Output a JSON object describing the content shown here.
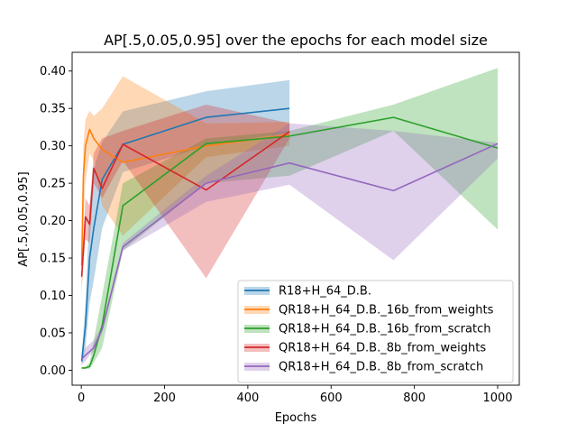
{
  "chart_data": {
    "type": "line",
    "title": "AP[.5,0.05,0.95] over the epochs for each model size",
    "xlabel": "Epochs",
    "ylabel": "AP[.5,0.05,0.95]",
    "xlim": [
      -22,
      1052
    ],
    "ylim": [
      -0.02,
      0.425
    ],
    "xticks": [
      0,
      200,
      400,
      600,
      800,
      1000
    ],
    "xtick_labels": [
      "0",
      "200",
      "400",
      "600",
      "800",
      "1000"
    ],
    "yticks": [
      0.0,
      0.05,
      0.1,
      0.15,
      0.2,
      0.25,
      0.3,
      0.35,
      0.4
    ],
    "ytick_labels": [
      "0.00",
      "0.05",
      "0.10",
      "0.15",
      "0.20",
      "0.25",
      "0.30",
      "0.35",
      "0.40"
    ],
    "grid": false,
    "legend_position": "lower-right",
    "series": [
      {
        "name": "R18+H_64_D.B.",
        "color": "#1f77b4",
        "x": [
          1,
          10,
          20,
          30,
          50,
          100,
          300,
          500
        ],
        "mean": [
          0.012,
          0.06,
          0.15,
          0.19,
          0.255,
          0.302,
          0.338,
          0.35
        ],
        "lower": [
          0.005,
          0.03,
          0.09,
          0.12,
          0.19,
          0.265,
          0.3,
          0.318
        ],
        "upper": [
          0.02,
          0.09,
          0.22,
          0.27,
          0.305,
          0.346,
          0.373,
          0.388
        ]
      },
      {
        "name": "QR18+H_64_D.B._16b_from_weights",
        "color": "#ff7f0e",
        "x": [
          1,
          5,
          10,
          20,
          30,
          50,
          100,
          300,
          500
        ],
        "mean": [
          0.14,
          0.26,
          0.3,
          0.322,
          0.31,
          0.295,
          0.278,
          0.3,
          0.315
        ],
        "lower": [
          0.09,
          0.2,
          0.25,
          0.29,
          0.28,
          0.22,
          0.18,
          0.285,
          0.3
        ],
        "upper": [
          0.18,
          0.3,
          0.335,
          0.347,
          0.34,
          0.35,
          0.393,
          0.33,
          0.332
        ]
      },
      {
        "name": "QR18+H_64_D.B._16b_from_scratch",
        "color": "#2ca02c",
        "x": [
          1,
          10,
          20,
          30,
          50,
          100,
          300,
          500,
          750,
          1000
        ],
        "mean": [
          0.003,
          0.003,
          0.005,
          0.02,
          0.06,
          0.22,
          0.303,
          0.313,
          0.338,
          0.297
        ],
        "lower": [
          0.002,
          0.002,
          0.002,
          0.01,
          0.03,
          0.16,
          0.25,
          0.26,
          0.32,
          0.188
        ],
        "upper": [
          0.004,
          0.005,
          0.01,
          0.04,
          0.1,
          0.25,
          0.31,
          0.32,
          0.355,
          0.404
        ]
      },
      {
        "name": "QR18+H_64_D.B._8b_from_weights",
        "color": "#d62728",
        "x": [
          1,
          10,
          20,
          30,
          50,
          100,
          300,
          500
        ],
        "mean": [
          0.125,
          0.205,
          0.195,
          0.27,
          0.243,
          0.302,
          0.241,
          0.319
        ],
        "lower": [
          0.11,
          0.175,
          0.17,
          0.25,
          0.23,
          0.28,
          0.123,
          0.31
        ],
        "upper": [
          0.14,
          0.23,
          0.22,
          0.29,
          0.31,
          0.32,
          0.355,
          0.33
        ]
      },
      {
        "name": "QR18+H_64_D.B._8b_from_scratch",
        "color": "#9467bd",
        "x": [
          1,
          10,
          20,
          30,
          50,
          100,
          300,
          500,
          750,
          1000
        ],
        "mean": [
          0.015,
          0.02,
          0.025,
          0.03,
          0.055,
          0.165,
          0.25,
          0.277,
          0.24,
          0.303
        ],
        "lower": [
          0.008,
          0.012,
          0.02,
          0.025,
          0.05,
          0.16,
          0.225,
          0.248,
          0.147,
          0.283
        ],
        "upper": [
          0.022,
          0.03,
          0.035,
          0.04,
          0.06,
          0.17,
          0.26,
          0.33,
          0.32,
          0.304
        ]
      }
    ]
  }
}
